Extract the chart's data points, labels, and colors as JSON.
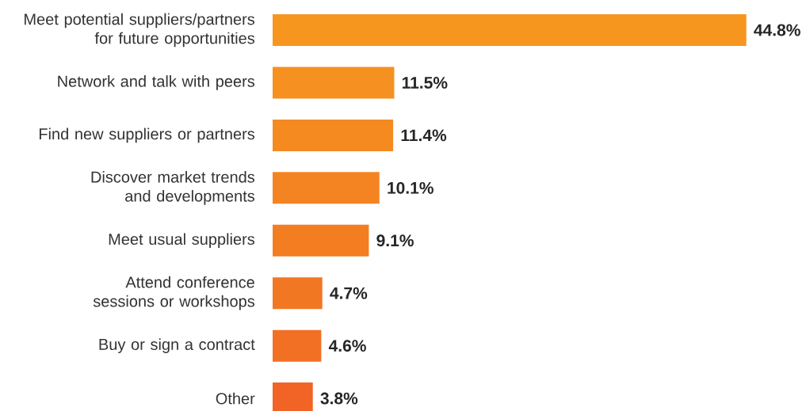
{
  "chart_data": {
    "type": "bar",
    "orientation": "horizontal",
    "categories": [
      "Meet potential suppliers/partners for future opportunities",
      "Network and talk with peers",
      "Find new suppliers or partners",
      "Discover market trends and developments",
      "Meet usual suppliers",
      "Attend conference sessions or workshops",
      "Buy or sign a contract",
      "Other"
    ],
    "values": [
      44.8,
      11.5,
      11.4,
      10.1,
      9.1,
      4.7,
      4.6,
      3.8
    ],
    "value_labels": [
      "44.8%",
      "11.5%",
      "11.4%",
      "10.1%",
      "9.1%",
      "4.7%",
      "4.6%",
      "3.8%"
    ],
    "colors": [
      "#f7961f",
      "#f69020",
      "#f58a21",
      "#f48422",
      "#f37e22",
      "#f27723",
      "#f27024",
      "#f16425"
    ]
  }
}
